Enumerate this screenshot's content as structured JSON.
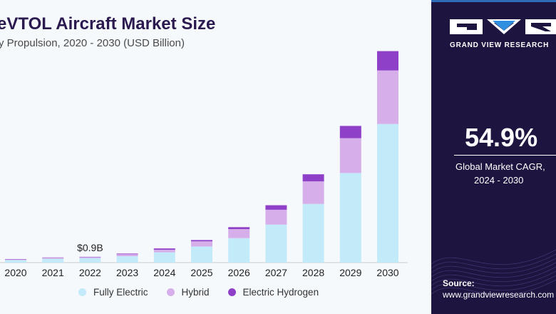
{
  "title": "eVTOL Aircraft Market Size",
  "subtitle": "y Propulsion, 2020 - 2030 (USD Billion)",
  "chart_data": {
    "type": "bar",
    "stacked": true,
    "categories": [
      "2020",
      "2021",
      "2022",
      "2023",
      "2024",
      "2025",
      "2026",
      "2027",
      "2028",
      "2029",
      "2030"
    ],
    "series": [
      {
        "name": "Fully Electric",
        "color": "#c3eaf9",
        "values": [
          0.4,
          0.6,
          0.7,
          1.0,
          1.6,
          2.5,
          3.8,
          5.9,
          9.1,
          13.9,
          21.5
        ]
      },
      {
        "name": "Hybrid",
        "color": "#d5aeea",
        "values": [
          0.1,
          0.15,
          0.15,
          0.3,
          0.4,
          0.8,
          1.4,
          2.3,
          3.5,
          5.4,
          8.3
        ]
      },
      {
        "name": "Electric Hydrogen",
        "color": "#8f40c9",
        "values": [
          0.05,
          0.05,
          0.05,
          0.1,
          0.2,
          0.2,
          0.3,
          0.7,
          1.1,
          1.9,
          3.0
        ]
      }
    ],
    "annotations": [
      {
        "category": "2022",
        "text": "$0.9B"
      }
    ],
    "ylim": [
      0,
      33.2
    ],
    "xlabel": "",
    "ylabel": "",
    "legend_position": "bottom"
  },
  "legend": {
    "items": [
      {
        "label": "Fully Electric",
        "color": "#c3eaf9"
      },
      {
        "label": "Hybrid",
        "color": "#d5aeea"
      },
      {
        "label": "Electric Hydrogen",
        "color": "#8f40c9"
      }
    ]
  },
  "brand": {
    "name": "GRAND VIEW RESEARCH"
  },
  "cagr": {
    "value": "54.9%",
    "label_line1": "Global Market CAGR,",
    "label_line2": "2024 - 2030"
  },
  "source": {
    "label": "Source:",
    "url": "www.grandviewresearch.com"
  },
  "colors": {
    "panel_bg": "#1d1440",
    "title": "#2b1a4f",
    "wave": "#4a3a7a"
  }
}
